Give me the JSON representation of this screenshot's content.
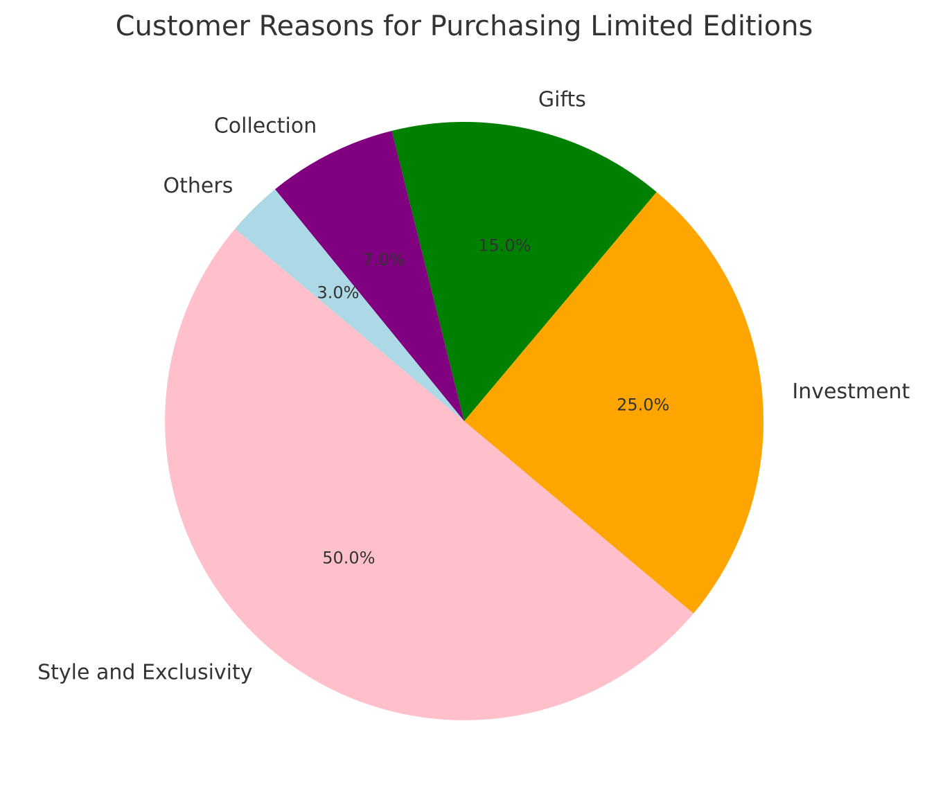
{
  "chart_data": {
    "type": "pie",
    "title": "Customer Reasons for Purchasing Limited Editions",
    "categories": [
      "Style and Exclusivity",
      "Investment",
      "Gifts",
      "Collection",
      "Others"
    ],
    "values": [
      50,
      25,
      15,
      7,
      3
    ],
    "value_labels": [
      "50.0%",
      "25.0%",
      "15.0%",
      "7.0%",
      "3.0%"
    ],
    "colors": [
      "pink",
      "orange",
      "green",
      "purple",
      "lightblue"
    ]
  }
}
